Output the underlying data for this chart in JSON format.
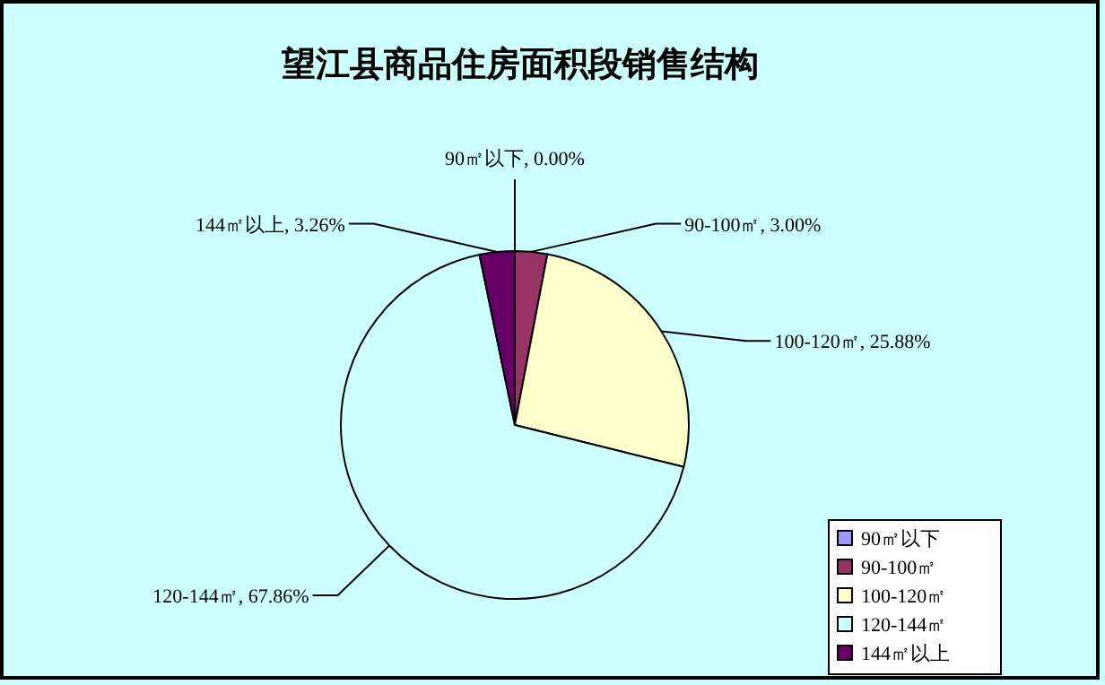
{
  "chart_data": {
    "type": "pie",
    "title": "望江县商品住房面积段销售结构",
    "categories": [
      "90㎡以下",
      "90-100㎡",
      "100-120㎡",
      "120-144㎡",
      "144㎡以上"
    ],
    "values": [
      0.0,
      3.0,
      25.88,
      67.86,
      3.26
    ],
    "value_labels": [
      "90㎡以下, 0.00%",
      "90-100㎡, 3.00%",
      "100-120㎡, 25.88%",
      "120-144㎡, 67.86%",
      "144㎡以上, 3.26%"
    ],
    "colors": [
      "#9999ff",
      "#993366",
      "#ffffcc",
      "#ccffff",
      "#660066"
    ],
    "legend": "bottom right"
  }
}
